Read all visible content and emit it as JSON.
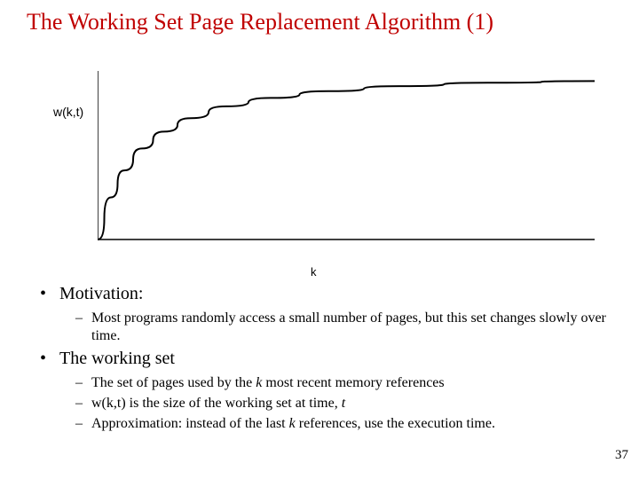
{
  "title": "The Working Set Page Replacement Algorithm (1)",
  "chart": {
    "type": "line",
    "ylabel": "w(k,t)",
    "xlabel": "k",
    "xlim": [
      0,
      560
    ],
    "ylim": [
      0,
      200
    ],
    "axis_color": "#000000",
    "line_color": "#000000",
    "background_color": "#ffffff",
    "line_width": 2,
    "axis_width": 1.5,
    "curve_points": [
      [
        0,
        0
      ],
      [
        15,
        50
      ],
      [
        30,
        82
      ],
      [
        50,
        108
      ],
      [
        75,
        128
      ],
      [
        105,
        144
      ],
      [
        145,
        158
      ],
      [
        195,
        168
      ],
      [
        260,
        176
      ],
      [
        340,
        182
      ],
      [
        440,
        186
      ],
      [
        560,
        188
      ]
    ]
  },
  "bullets": {
    "motivation": {
      "label": "Motivation:",
      "sub": [
        "Most programs randomly access a small number of pages, but this set changes slowly over time."
      ]
    },
    "workingset": {
      "label": "The working set",
      "sub_html": [
        "The set of pages used by the <span class=\"ital\">k</span> most recent memory references",
        "w(k,t) is the size of the working set at time, <span class=\"ital\">t</span>",
        "Approximation: instead of the last <span class=\"ital\">k</span> references, use the execution time."
      ]
    }
  },
  "page_number": "37",
  "colors": {
    "title": "#c00000",
    "text": "#000000",
    "background": "#ffffff"
  },
  "fonts": {
    "title_size": 26,
    "body_size": 20,
    "sub_size": 16,
    "axis_label_size": 14
  }
}
